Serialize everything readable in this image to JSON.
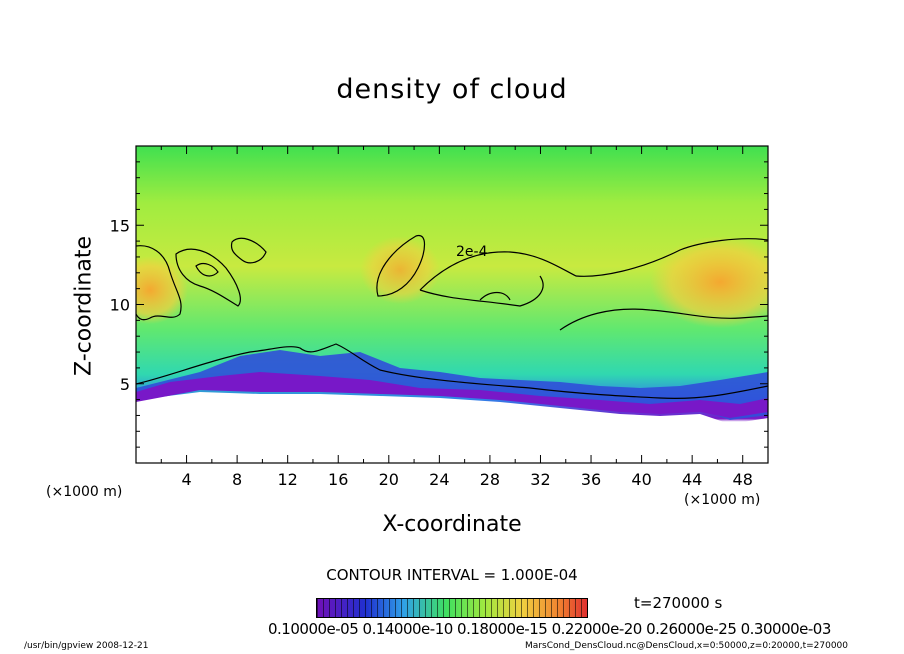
{
  "chart_data": {
    "type": "heatmap",
    "title": "density of cloud",
    "xlabel": "X-coordinate",
    "ylabel": "Z-coordinate",
    "x_unit": "(×1000 m)",
    "y_unit": "(×1000 m)",
    "xlim": [
      0,
      50
    ],
    "ylim": [
      0,
      20
    ],
    "x_ticks": [
      4,
      8,
      12,
      16,
      20,
      24,
      28,
      32,
      36,
      40,
      44,
      48
    ],
    "y_ticks": [
      5,
      10,
      15
    ],
    "contour_label": "2e-4",
    "contour_interval_text": "CONTOUR INTERVAL = 1.000E-04",
    "time_text": "t=270000 s",
    "colorbar_ticks_text": "0.10000e-05 0.14000e-10 0.18000e-15 0.22000e-20 0.26000e-25 0.30000e-03",
    "colors": {
      "high": "#f0b030",
      "mid": "#40e060",
      "low": "#7818c8",
      "background": "#ffffff"
    }
  },
  "footer": {
    "left": "/usr/bin/gpview   2008-12-21",
    "right": "MarsCond_DensCloud.nc@DensCloud,x=0:50000,z=0:20000,t=270000"
  }
}
